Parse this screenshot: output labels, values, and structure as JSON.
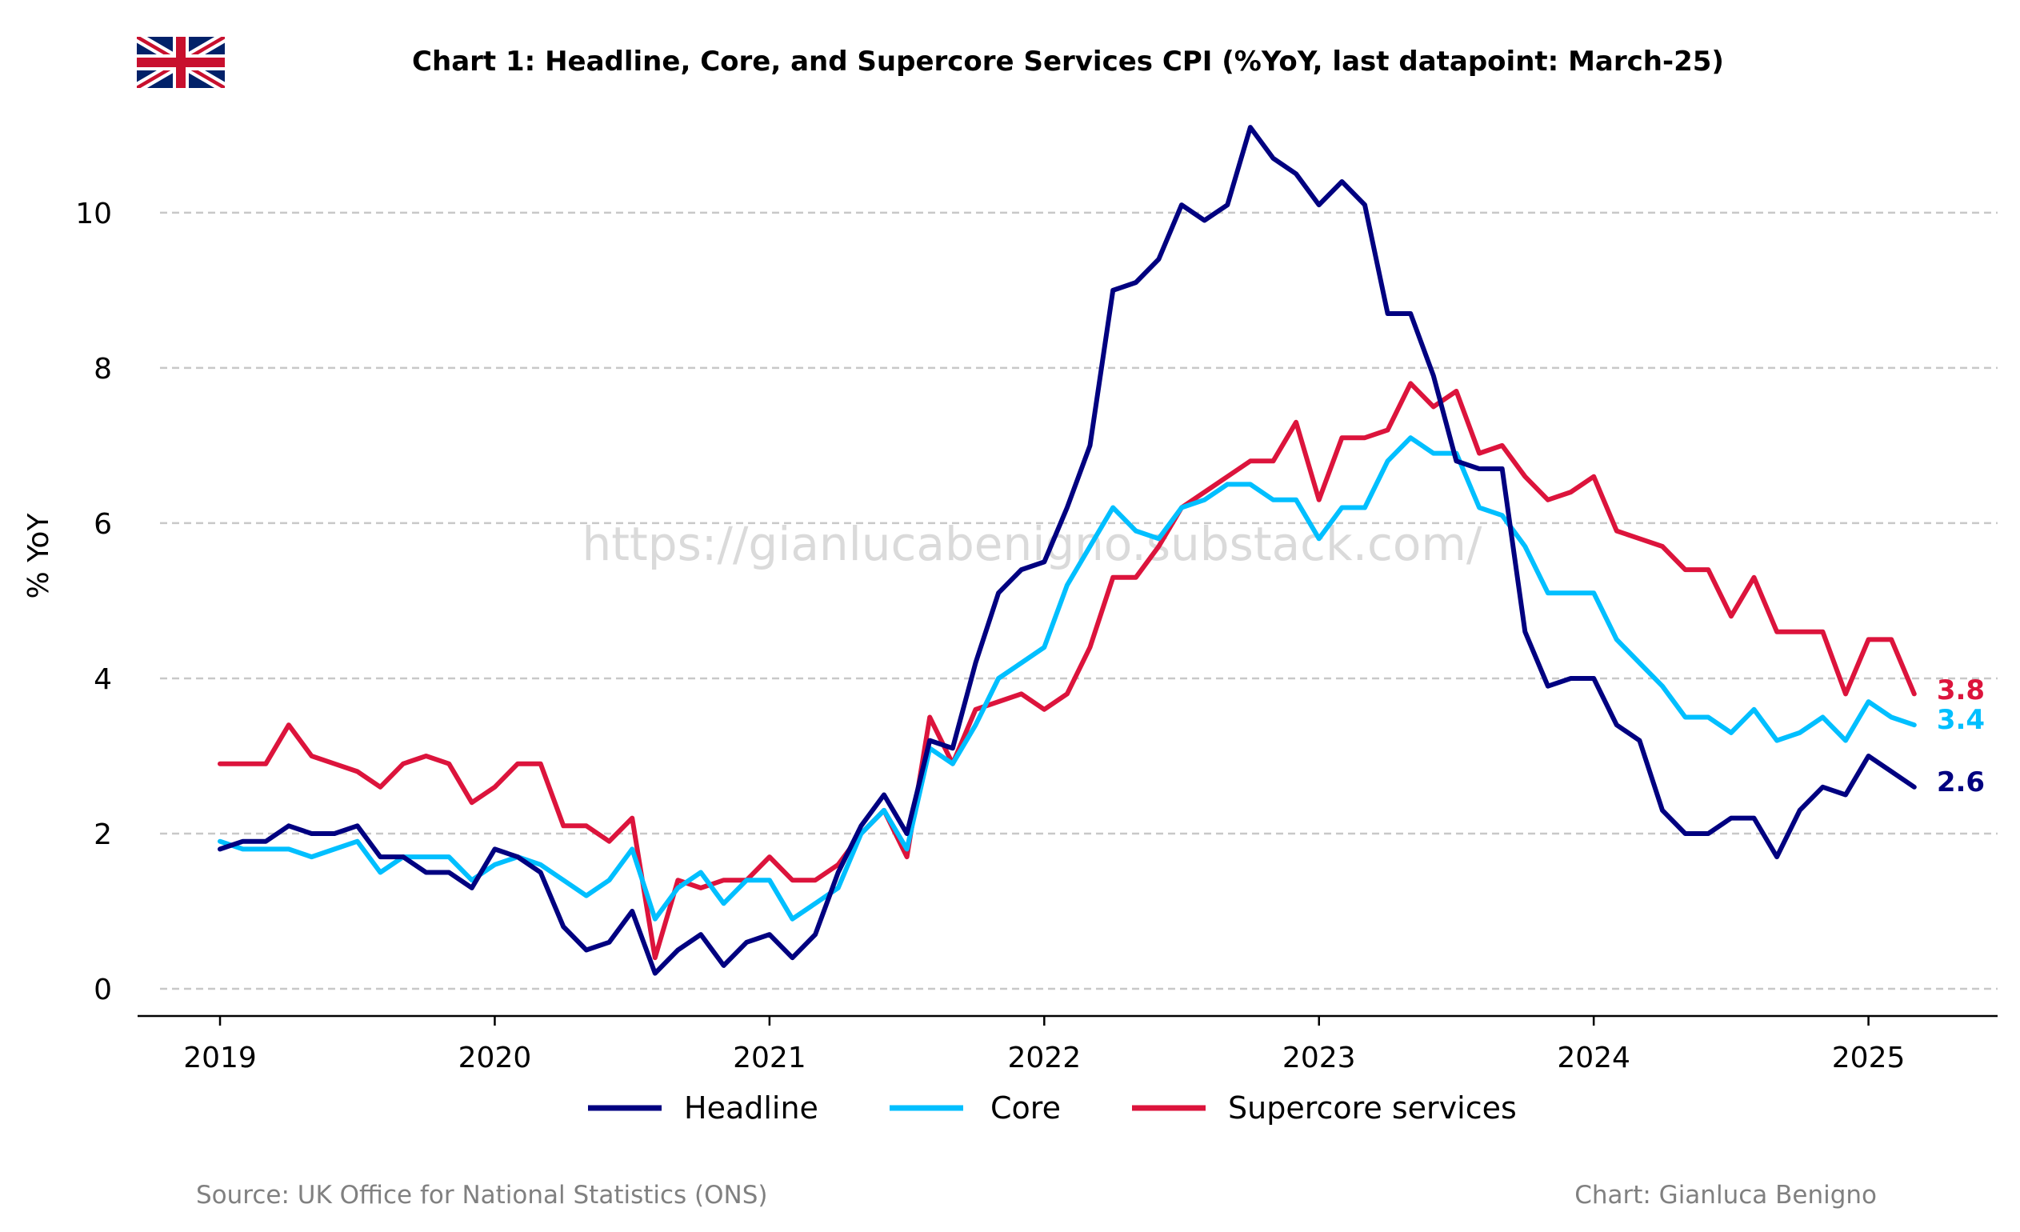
{
  "chart_data": {
    "type": "line",
    "title": "Chart 1: Headline, Core, and Supercore Services CPI (%YoY, last datapoint: March-25)",
    "ylabel": "% YoY",
    "xlabel": "",
    "ylim": [
      -0.35,
      11.4
    ],
    "xlim": [
      2018.7,
      2025.47
    ],
    "y_ticks": [
      0,
      2,
      4,
      6,
      8,
      10
    ],
    "x_ticks": [
      "2019",
      "2020",
      "2021",
      "2022",
      "2023",
      "2024",
      "2025"
    ],
    "grid": "horizontal dashed",
    "legend_position": "bottom-center",
    "x_start": "2019-01",
    "x_step": "monthly",
    "series": [
      {
        "name": "Headline",
        "color": "#000080",
        "end_label": "2.6",
        "values": [
          1.8,
          1.9,
          1.9,
          2.1,
          2.0,
          2.0,
          2.1,
          1.7,
          1.7,
          1.5,
          1.5,
          1.3,
          1.8,
          1.7,
          1.5,
          0.8,
          0.5,
          0.6,
          1.0,
          0.2,
          0.5,
          0.7,
          0.3,
          0.6,
          0.7,
          0.4,
          0.7,
          1.5,
          2.1,
          2.5,
          2.0,
          3.2,
          3.1,
          4.2,
          5.1,
          5.4,
          5.5,
          6.2,
          7.0,
          9.0,
          9.1,
          9.4,
          10.1,
          9.9,
          10.1,
          11.1,
          10.7,
          10.5,
          10.1,
          10.4,
          10.1,
          8.7,
          8.7,
          7.9,
          6.8,
          6.7,
          6.7,
          4.6,
          3.9,
          4.0,
          4.0,
          3.4,
          3.2,
          2.3,
          2.0,
          2.0,
          2.2,
          2.2,
          1.7,
          2.3,
          2.6,
          2.5,
          3.0,
          2.8,
          2.6
        ]
      },
      {
        "name": "Core",
        "color": "#00BFFF",
        "end_label": "3.4",
        "values": [
          1.9,
          1.8,
          1.8,
          1.8,
          1.7,
          1.8,
          1.9,
          1.5,
          1.7,
          1.7,
          1.7,
          1.4,
          1.6,
          1.7,
          1.6,
          1.4,
          1.2,
          1.4,
          1.8,
          0.9,
          1.3,
          1.5,
          1.1,
          1.4,
          1.4,
          0.9,
          1.1,
          1.3,
          2.0,
          2.3,
          1.8,
          3.1,
          2.9,
          3.4,
          4.0,
          4.2,
          4.4,
          5.2,
          5.7,
          6.2,
          5.9,
          5.8,
          6.2,
          6.3,
          6.5,
          6.5,
          6.3,
          6.3,
          5.8,
          6.2,
          6.2,
          6.8,
          7.1,
          6.9,
          6.9,
          6.2,
          6.1,
          5.7,
          5.1,
          5.1,
          5.1,
          4.5,
          4.2,
          3.9,
          3.5,
          3.5,
          3.3,
          3.6,
          3.2,
          3.3,
          3.5,
          3.2,
          3.7,
          3.5,
          3.4
        ]
      },
      {
        "name": "Supercore services",
        "color": "#DC143C",
        "end_label": "3.8",
        "values": [
          2.9,
          2.9,
          2.9,
          3.4,
          3.0,
          2.9,
          2.8,
          2.6,
          2.9,
          3.0,
          2.9,
          2.4,
          2.6,
          2.9,
          2.9,
          2.1,
          2.1,
          1.9,
          2.2,
          0.4,
          1.4,
          1.3,
          1.4,
          1.4,
          1.7,
          1.4,
          1.4,
          1.6,
          2.0,
          2.3,
          1.7,
          3.5,
          2.9,
          3.6,
          3.7,
          3.8,
          3.6,
          3.8,
          4.4,
          5.3,
          5.3,
          5.7,
          6.2,
          6.4,
          6.6,
          6.8,
          6.8,
          7.3,
          6.3,
          7.1,
          7.1,
          7.2,
          7.8,
          7.5,
          7.7,
          6.9,
          7.0,
          6.6,
          6.3,
          6.4,
          6.6,
          5.9,
          5.8,
          5.7,
          5.4,
          5.4,
          4.8,
          5.3,
          4.6,
          4.6,
          4.6,
          3.8,
          4.5,
          4.5,
          3.8
        ]
      }
    ]
  },
  "watermark": "https://gianlucabenigno.substack.com/",
  "footer": {
    "source": "Source: UK Office for National Statistics (ONS)",
    "credit": "Chart: Gianluca Benigno"
  },
  "flag_icon": "uk-flag-icon",
  "colors": {
    "grid": "#c8c8c8",
    "axis": "#000000",
    "footer_text": "#808080",
    "watermark": "#d3d3d3"
  }
}
